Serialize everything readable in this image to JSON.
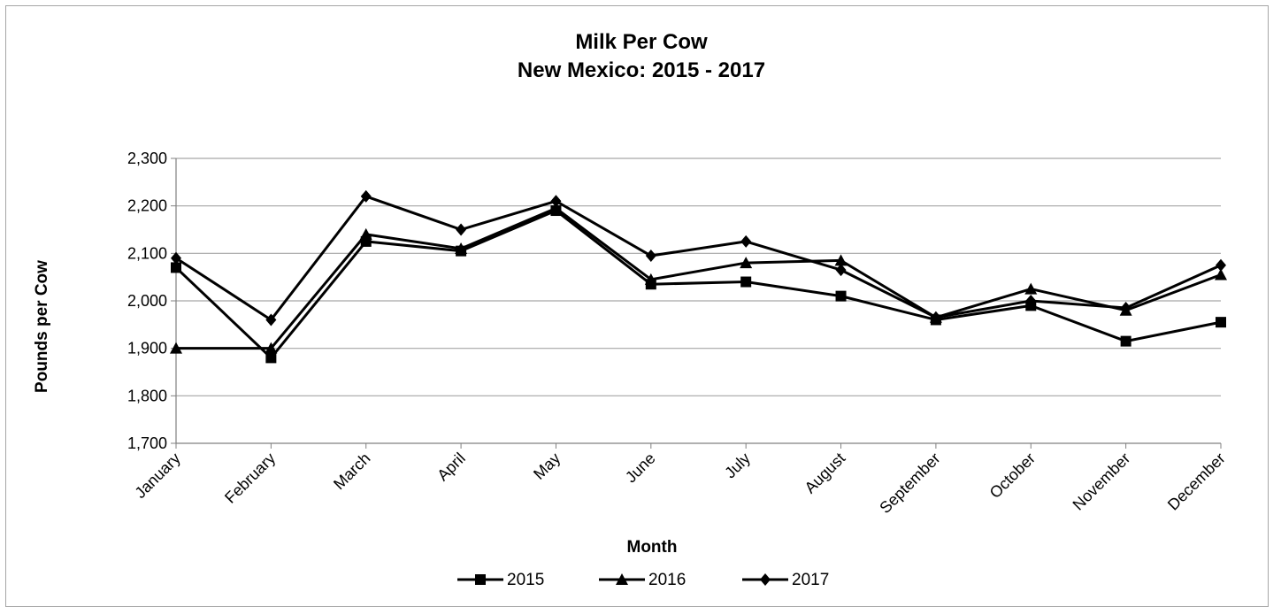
{
  "chart_data": {
    "type": "line",
    "title": "Milk Per Cow",
    "subtitle": "New Mexico: 2015 - 2017",
    "xlabel": "Month",
    "ylabel": "Pounds per Cow",
    "ylim": [
      1700,
      2300
    ],
    "yticks": [
      "2,300",
      "2,200",
      "2,100",
      "2,000",
      "1,900",
      "1,800",
      "1,700"
    ],
    "ytick_values": [
      2300,
      2200,
      2100,
      2000,
      1900,
      1800,
      1700
    ],
    "grid": true,
    "legend": "bottom",
    "categories": [
      "January",
      "February",
      "March",
      "April",
      "May",
      "June",
      "July",
      "August",
      "September",
      "October",
      "November",
      "December"
    ],
    "series": [
      {
        "name": "2015",
        "marker": "square",
        "values": [
          2070,
          1880,
          2125,
          2105,
          2190,
          2035,
          2040,
          2010,
          1960,
          1990,
          1915,
          1955
        ]
      },
      {
        "name": "2016",
        "marker": "triangle",
        "values": [
          1900,
          1900,
          2140,
          2110,
          2195,
          2045,
          2080,
          2085,
          1965,
          2025,
          1980,
          2055
        ]
      },
      {
        "name": "2017",
        "marker": "diamond",
        "values": [
          2090,
          1960,
          2220,
          2150,
          2210,
          2095,
          2125,
          2065,
          1965,
          2000,
          1985,
          2075
        ]
      }
    ],
    "colors": {
      "line": "#000000",
      "grid": "#a6a6a6",
      "axis": "#808080"
    }
  }
}
